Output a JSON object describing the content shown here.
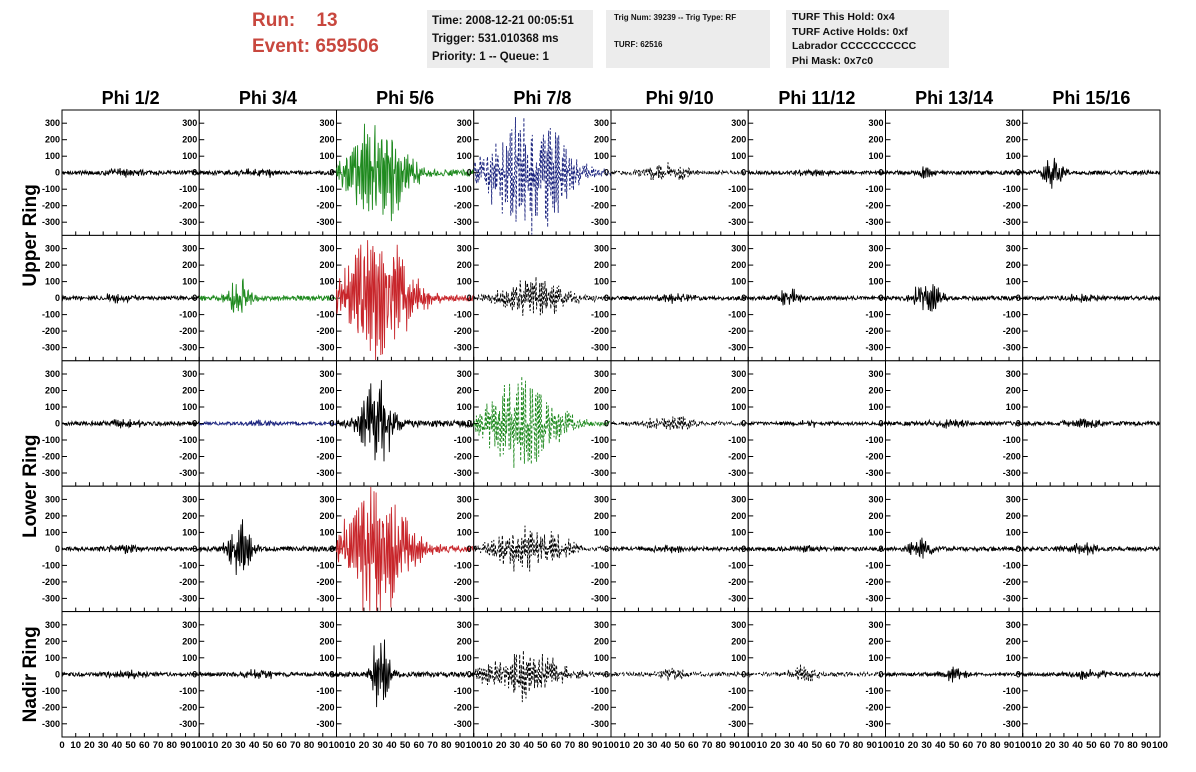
{
  "header": {
    "run_label": "Run:",
    "run_value": "13",
    "event_label": "Event:",
    "event_value": "659506",
    "time": "Time: 2008-12-21 00:05:51",
    "trigger": "Trigger: 531.010368 ms",
    "priority": "Priority: 1 -- Queue: 1",
    "trig_num": "Trig Num: 39239 -- Trig Type: RF",
    "turf": "TURF: 62516",
    "turf_this_hold": "TURF This Hold: 0x4",
    "turf_active_holds": "TURF Active Holds: 0xf",
    "labrador": "Labrador CCCCCCCCCC",
    "phi_mask": "Phi Mask: 0x7c0"
  },
  "chart_data": {
    "type": "line",
    "columns": [
      "Phi 1/2",
      "Phi 3/4",
      "Phi 5/6",
      "Phi 7/8",
      "Phi 9/10",
      "Phi 11/12",
      "Phi 13/14",
      "Phi 15/16"
    ],
    "rows": [
      "Upper Ring",
      "Upper Ring",
      "Lower Ring",
      "Lower Ring",
      "Nadir Ring"
    ],
    "row_labels": [
      {
        "label": "Upper Ring",
        "rows": [
          0,
          1
        ]
      },
      {
        "label": "Lower Ring",
        "rows": [
          2,
          3
        ]
      },
      {
        "label": "Nadir Ring",
        "rows": [
          4
        ]
      }
    ],
    "xlim": [
      0,
      100
    ],
    "ylim": [
      -380,
      380
    ],
    "x_ticks": [
      "0",
      "10",
      "20",
      "30",
      "40",
      "50",
      "60",
      "70",
      "80",
      "90",
      "100"
    ],
    "y_ticks": [
      "300",
      "200",
      "100",
      "0",
      "-100",
      "-200",
      "-300"
    ],
    "series_colors": {
      "black": "#000000",
      "green": "#1f8a1f",
      "red": "#c8262b",
      "blue": "#1a237e"
    },
    "panels": [
      [
        {
          "color": "black",
          "style": "solid",
          "noise": 12,
          "burst": 20,
          "center": 45,
          "width": 15
        },
        {
          "color": "black",
          "style": "solid",
          "noise": 12,
          "burst": 20,
          "center": 45,
          "width": 15
        },
        {
          "color": "green",
          "style": "solid",
          "noise": 20,
          "burst": 300,
          "center": 30,
          "width": 22
        },
        {
          "color": "blue",
          "style": "dashed",
          "noise": 15,
          "burst": 340,
          "center": 40,
          "width": 30
        },
        {
          "color": "black",
          "style": "dashed",
          "noise": 12,
          "burst": 50,
          "center": 40,
          "width": 20
        },
        {
          "color": "black",
          "style": "solid",
          "noise": 10,
          "burst": 15,
          "center": 45,
          "width": 15
        },
        {
          "color": "black",
          "style": "solid",
          "noise": 12,
          "burst": 40,
          "center": 30,
          "width": 8
        },
        {
          "color": "black",
          "style": "solid",
          "noise": 12,
          "burst": 85,
          "center": 22,
          "width": 8
        }
      ],
      [
        {
          "color": "black",
          "style": "solid",
          "noise": 12,
          "burst": 20,
          "center": 40,
          "width": 15
        },
        {
          "color": "green",
          "style": "solid",
          "noise": 15,
          "burst": 140,
          "center": 30,
          "width": 8
        },
        {
          "color": "red",
          "style": "solid",
          "noise": 20,
          "burst": 370,
          "center": 30,
          "width": 25
        },
        {
          "color": "black",
          "style": "dashed",
          "noise": 15,
          "burst": 110,
          "center": 45,
          "width": 25
        },
        {
          "color": "black",
          "style": "solid",
          "noise": 12,
          "burst": 20,
          "center": 45,
          "width": 15
        },
        {
          "color": "black",
          "style": "solid",
          "noise": 12,
          "burst": 50,
          "center": 30,
          "width": 8
        },
        {
          "color": "black",
          "style": "solid",
          "noise": 12,
          "burst": 100,
          "center": 30,
          "width": 10
        },
        {
          "color": "black",
          "style": "solid",
          "noise": 12,
          "burst": 20,
          "center": 45,
          "width": 15
        }
      ],
      [
        {
          "color": "black",
          "style": "solid",
          "noise": 12,
          "burst": 25,
          "center": 45,
          "width": 15
        },
        {
          "color": "blue",
          "style": "solid",
          "noise": 10,
          "burst": 12,
          "center": 45,
          "width": 15
        },
        {
          "color": "black",
          "style": "solid",
          "noise": 20,
          "burst": 260,
          "center": 30,
          "width": 12
        },
        {
          "color": "green",
          "style": "dashed",
          "noise": 15,
          "burst": 240,
          "center": 35,
          "width": 28
        },
        {
          "color": "black",
          "style": "dashed",
          "noise": 12,
          "burst": 40,
          "center": 45,
          "width": 20
        },
        {
          "color": "black",
          "style": "solid",
          "noise": 10,
          "burst": 15,
          "center": 45,
          "width": 15
        },
        {
          "color": "black",
          "style": "solid",
          "noise": 12,
          "burst": 25,
          "center": 45,
          "width": 15
        },
        {
          "color": "black",
          "style": "solid",
          "noise": 12,
          "burst": 25,
          "center": 45,
          "width": 15
        }
      ],
      [
        {
          "color": "black",
          "style": "solid",
          "noise": 12,
          "burst": 20,
          "center": 45,
          "width": 15
        },
        {
          "color": "black",
          "style": "solid",
          "noise": 15,
          "burst": 140,
          "center": 30,
          "width": 10
        },
        {
          "color": "red",
          "style": "solid",
          "noise": 20,
          "burst": 360,
          "center": 28,
          "width": 25
        },
        {
          "color": "black",
          "style": "dashed",
          "noise": 15,
          "burst": 120,
          "center": 40,
          "width": 28
        },
        {
          "color": "black",
          "style": "solid",
          "noise": 12,
          "burst": 20,
          "center": 45,
          "width": 15
        },
        {
          "color": "black",
          "style": "solid",
          "noise": 12,
          "burst": 15,
          "center": 45,
          "width": 15
        },
        {
          "color": "black",
          "style": "solid",
          "noise": 12,
          "burst": 50,
          "center": 25,
          "width": 10
        },
        {
          "color": "black",
          "style": "solid",
          "noise": 12,
          "burst": 25,
          "center": 45,
          "width": 15
        }
      ],
      [
        {
          "color": "black",
          "style": "solid",
          "noise": 12,
          "burst": 25,
          "center": 45,
          "width": 15
        },
        {
          "color": "black",
          "style": "solid",
          "noise": 12,
          "burst": 20,
          "center": 45,
          "width": 15
        },
        {
          "color": "black",
          "style": "solid",
          "noise": 15,
          "burst": 200,
          "center": 32,
          "width": 7
        },
        {
          "color": "black",
          "style": "dashed",
          "noise": 15,
          "burst": 130,
          "center": 35,
          "width": 28
        },
        {
          "color": "black",
          "style": "dashed",
          "noise": 12,
          "burst": 25,
          "center": 45,
          "width": 15
        },
        {
          "color": "black",
          "style": "dashed",
          "noise": 12,
          "burst": 50,
          "center": 40,
          "width": 10
        },
        {
          "color": "black",
          "style": "solid",
          "noise": 10,
          "burst": 40,
          "center": 50,
          "width": 10
        },
        {
          "color": "black",
          "style": "solid",
          "noise": 12,
          "burst": 25,
          "center": 50,
          "width": 15
        }
      ]
    ]
  }
}
